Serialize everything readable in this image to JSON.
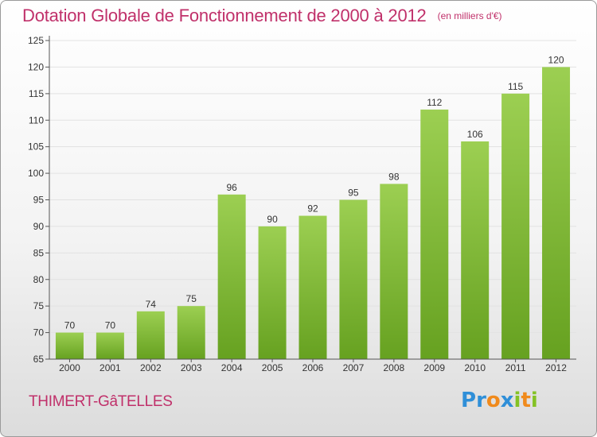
{
  "title": "Dotation Globale de Fonctionnement de 2000 à 2012",
  "unit": "(en milliers d'€)",
  "commune": "THIMERT-GâTELLES",
  "logo": {
    "text": "Proxiti",
    "colors": [
      "#2f8fd8",
      "#2f8fd8",
      "#f08a1c",
      "#2f8fd8",
      "#84c225",
      "#f08a1c",
      "#84c225"
    ]
  },
  "colors": {
    "accent": "#c0306a",
    "bar_top": "#9ccf52",
    "bar_bottom": "#66a120",
    "grid": "#e2e2e2"
  },
  "chart_data": {
    "type": "bar",
    "title": "Dotation Globale de Fonctionnement de 2000 à 2012",
    "ylabel": "(en milliers d'€)",
    "xlabel": "",
    "categories": [
      "2000",
      "2001",
      "2002",
      "2003",
      "2004",
      "2005",
      "2006",
      "2007",
      "2008",
      "2009",
      "2010",
      "2011",
      "2012"
    ],
    "values": [
      70,
      70,
      74,
      75,
      96,
      90,
      92,
      95,
      98,
      112,
      106,
      115,
      120
    ],
    "ylim": [
      65,
      125
    ],
    "yticks": [
      65,
      70,
      75,
      80,
      85,
      90,
      95,
      100,
      105,
      110,
      115,
      120,
      125
    ],
    "grid": true,
    "data_labels": true
  }
}
